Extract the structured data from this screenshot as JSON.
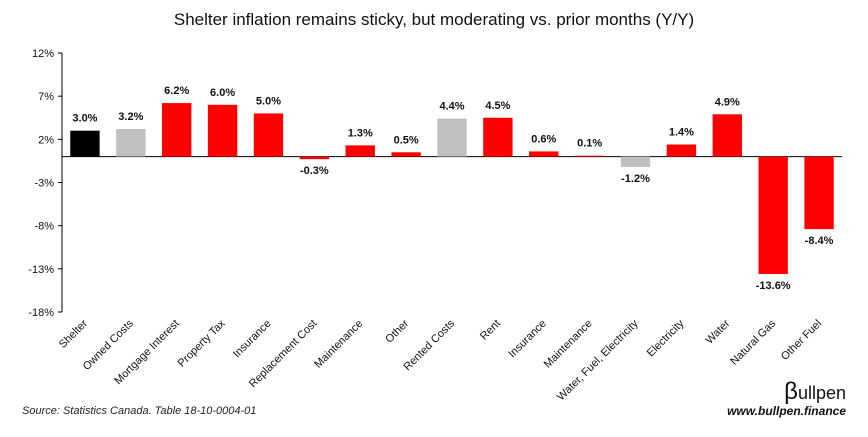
{
  "chart_data": {
    "type": "bar",
    "title": "Shelter inflation remains sticky, but moderating vs. prior months (Y/Y)",
    "categories": [
      "Shelter",
      "Owned Costs",
      "Mortgage Interest",
      "Property Tax",
      "Insurance",
      "Replacement Cost",
      "Maintenance",
      "Other",
      "Rented Costs",
      "Rent",
      "Insurance",
      "Maintenance",
      "Water, Fuel, Electricity",
      "Electricity",
      "Water",
      "Natural Gas",
      "Other Fuel"
    ],
    "values": [
      3.0,
      3.2,
      6.2,
      6.0,
      5.0,
      -0.3,
      1.3,
      0.5,
      4.4,
      4.5,
      0.6,
      0.1,
      -1.2,
      1.4,
      4.9,
      -13.6,
      -8.4
    ],
    "data_labels": [
      "3.0%",
      "3.2%",
      "6.2%",
      "6.0%",
      "5.0%",
      "-0.3%",
      "1.3%",
      "0.5%",
      "4.4%",
      "4.5%",
      "0.6%",
      "0.1%",
      "-1.2%",
      "1.4%",
      "4.9%",
      "-13.6%",
      "-8.4%"
    ],
    "bar_colors": [
      "#000000",
      "#bfbfbf",
      "#ff0000",
      "#ff0000",
      "#ff0000",
      "#ff0000",
      "#ff0000",
      "#ff0000",
      "#bfbfbf",
      "#ff0000",
      "#ff0000",
      "#ff0000",
      "#bfbfbf",
      "#ff0000",
      "#ff0000",
      "#ff0000",
      "#ff0000"
    ],
    "ylim": [
      -18,
      12
    ],
    "yticks": [
      12,
      7,
      2,
      -3,
      -8,
      -13,
      -18
    ],
    "ytick_labels": [
      "12%",
      "7%",
      "2%",
      "-3%",
      "-8%",
      "-13%",
      "-18%"
    ],
    "grid": false,
    "legend": "none",
    "xlabel": "",
    "ylabel": ""
  },
  "footer": {
    "source": "Source: Statistics Canada. Table 18-10-0004-01",
    "logo_b": "β",
    "logo_rest": "ullpen",
    "website": "www.bullpen.finance"
  }
}
